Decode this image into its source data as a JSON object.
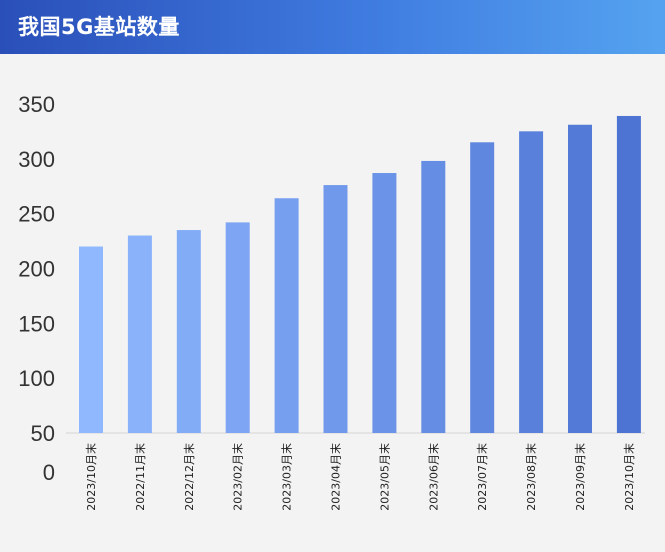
{
  "header": {
    "title": "我国5G基站数量"
  },
  "chart_data": {
    "type": "bar",
    "categories": [
      "2023/10月末",
      "2022/11月末",
      "2022/12月末",
      "2023/02月末",
      "2023/03月末",
      "2023/04月末",
      "2023/05月末",
      "2023/06月末",
      "2023/07月末",
      "2023/08月末",
      "2023/09月末",
      "2023/10月末"
    ],
    "values": [
      220,
      230,
      235,
      242,
      264,
      276,
      287,
      298,
      315,
      325,
      331,
      339
    ],
    "yticks": [
      0,
      50,
      100,
      150,
      200,
      250,
      300,
      350
    ],
    "ylim": [
      0,
      350
    ],
    "xlabel": "",
    "ylabel": "",
    "grid": false,
    "colors": {
      "bar_start": "#8fb8ff",
      "bar_end": "#4d74d3",
      "header": "#3f7be0"
    }
  }
}
